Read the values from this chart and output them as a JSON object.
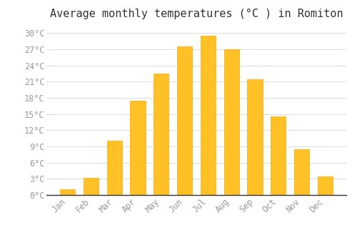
{
  "title": "Average monthly temperatures (°C ) in Romiton",
  "months": [
    "Jan",
    "Feb",
    "Mar",
    "Apr",
    "May",
    "Jun",
    "Jul",
    "Aug",
    "Sep",
    "Oct",
    "Nov",
    "Dec"
  ],
  "temperatures": [
    1.0,
    3.2,
    10.0,
    17.5,
    22.5,
    27.5,
    29.5,
    27.0,
    21.5,
    14.5,
    8.5,
    3.5
  ],
  "bar_color": "#FFC125",
  "bar_edge_color": "#FFA500",
  "background_color": "#FFFFFF",
  "plot_bg_color": "#FFFFFF",
  "grid_color": "#DDDDDD",
  "yticks": [
    0,
    3,
    6,
    9,
    12,
    15,
    18,
    21,
    24,
    27,
    30
  ],
  "ytick_labels": [
    "0°C",
    "3°C",
    "6°C",
    "9°C",
    "12°C",
    "15°C",
    "18°C",
    "21°C",
    "24°C",
    "27°C",
    "30°C"
  ],
  "ylim": [
    0,
    31.5
  ],
  "title_fontsize": 11,
  "tick_fontsize": 8.5,
  "tick_color": "#999999",
  "title_color": "#333333",
  "font_family": "monospace",
  "bar_width": 0.65,
  "spine_color": "#333333"
}
